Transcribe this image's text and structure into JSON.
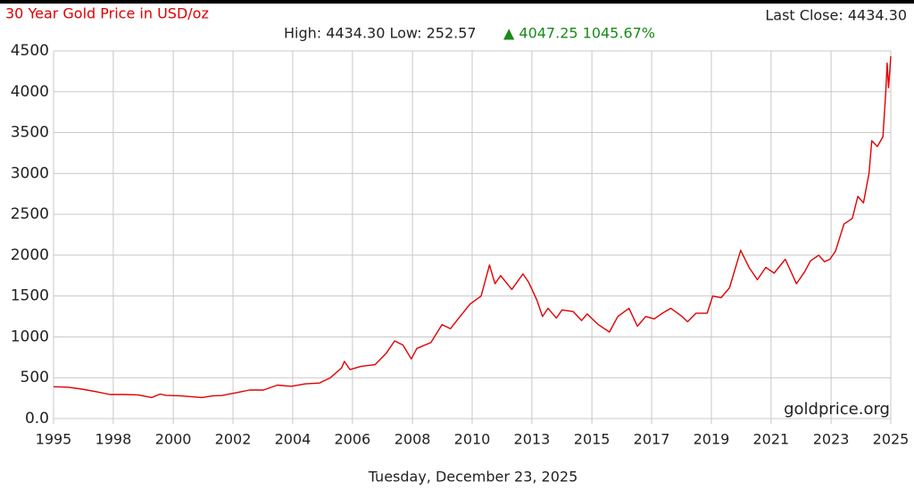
{
  "chart_data": {
    "type": "line",
    "title": "30 Year Gold Price in USD/oz",
    "last_close": "Last Close: 4434.30",
    "stats": "High: 4434.30 Low: 252.57",
    "change": "▲ 4047.25 1045.67%",
    "source": "goldprice.org",
    "date": "Tuesday, December 23, 2025",
    "color": "#e00000",
    "grid": true,
    "xlim": [
      1995.98,
      2025.98
    ],
    "xticks": [
      {
        "value": 1995.98,
        "label": "1995"
      },
      {
        "value": 1998.12,
        "label": "1998"
      },
      {
        "value": 2000.27,
        "label": "2000"
      },
      {
        "value": 2002.41,
        "label": "2002"
      },
      {
        "value": 2004.55,
        "label": "2004"
      },
      {
        "value": 2006.69,
        "label": "2006"
      },
      {
        "value": 2008.84,
        "label": "2008"
      },
      {
        "value": 2010.98,
        "label": "2010"
      },
      {
        "value": 2013.12,
        "label": "2013"
      },
      {
        "value": 2015.27,
        "label": "2015"
      },
      {
        "value": 2017.41,
        "label": "2017"
      },
      {
        "value": 2019.55,
        "label": "2019"
      },
      {
        "value": 2021.69,
        "label": "2021"
      },
      {
        "value": 2023.84,
        "label": "2023"
      },
      {
        "value": 2025.98,
        "label": "2025"
      }
    ],
    "ylim": [
      0,
      4500
    ],
    "yticks": [
      {
        "value": 0,
        "label": "0.0"
      },
      500,
      1000,
      1500,
      2000,
      2500,
      3000,
      3500,
      4000,
      4500
    ],
    "x": [
      1995.98,
      1996.5,
      1997.0,
      1997.5,
      1998.0,
      1998.5,
      1999.0,
      1999.5,
      1999.8,
      2000.0,
      2000.5,
      2001.0,
      2001.3,
      2001.7,
      2002.0,
      2002.5,
      2003.0,
      2003.5,
      2004.0,
      2004.5,
      2005.0,
      2005.5,
      2005.9,
      2006.3,
      2006.4,
      2006.6,
      2007.0,
      2007.5,
      2007.9,
      2008.2,
      2008.5,
      2008.8,
      2009.0,
      2009.5,
      2009.9,
      2010.2,
      2010.5,
      2010.9,
      2011.3,
      2011.6,
      2011.8,
      2012.0,
      2012.4,
      2012.8,
      2013.0,
      2013.3,
      2013.5,
      2013.7,
      2014.0,
      2014.2,
      2014.6,
      2014.9,
      2015.1,
      2015.5,
      2015.9,
      2016.2,
      2016.6,
      2016.9,
      2017.2,
      2017.5,
      2017.8,
      2018.1,
      2018.5,
      2018.7,
      2019.0,
      2019.4,
      2019.6,
      2019.9,
      2020.2,
      2020.6,
      2020.9,
      2021.2,
      2021.5,
      2021.8,
      2022.2,
      2022.6,
      2022.9,
      2023.1,
      2023.4,
      2023.6,
      2023.8,
      2024.0,
      2024.3,
      2024.6,
      2024.8,
      2025.0,
      2025.2,
      2025.3,
      2025.5,
      2025.7,
      2025.8,
      2025.85,
      2025.9,
      2025.98
    ],
    "values": [
      390,
      385,
      360,
      330,
      295,
      295,
      290,
      258,
      300,
      285,
      280,
      265,
      258,
      280,
      282,
      315,
      350,
      350,
      410,
      395,
      425,
      435,
      500,
      620,
      700,
      600,
      640,
      660,
      800,
      950,
      900,
      730,
      860,
      930,
      1150,
      1100,
      1230,
      1400,
      1500,
      1880,
      1650,
      1750,
      1580,
      1770,
      1670,
      1450,
      1250,
      1350,
      1230,
      1330,
      1310,
      1200,
      1280,
      1150,
      1060,
      1250,
      1350,
      1130,
      1250,
      1220,
      1290,
      1350,
      1250,
      1185,
      1290,
      1290,
      1500,
      1480,
      1600,
      2060,
      1850,
      1700,
      1850,
      1780,
      1950,
      1650,
      1800,
      1930,
      2000,
      1920,
      1950,
      2050,
      2380,
      2450,
      2720,
      2640,
      3000,
      3400,
      3330,
      3450,
      4000,
      4350,
      4050,
      4434.3
    ]
  }
}
